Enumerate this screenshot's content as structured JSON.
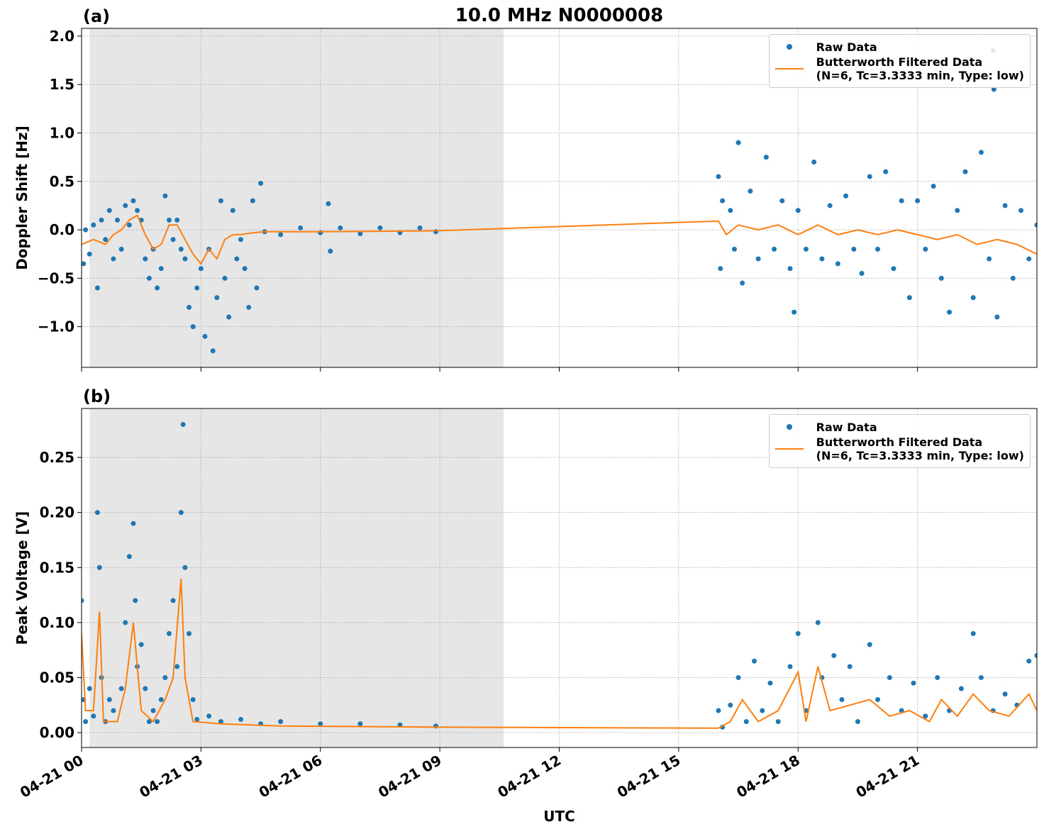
{
  "chart_data": [
    {
      "type": "scatter",
      "title": "10.0 MHz N0000008",
      "panel_label": "(a)",
      "y_label": "Doppler Shift [Hz]",
      "xlim": [
        0,
        24
      ],
      "xticks": [
        0,
        3,
        6,
        9,
        12,
        15,
        18,
        21
      ],
      "ylim": [
        -1.42,
        2.08
      ],
      "yticks": [
        {
          "value": -1.0,
          "label": "−1.0"
        },
        {
          "value": -0.5,
          "label": "−0.5"
        },
        {
          "value": 0.0,
          "label": "0.0"
        },
        {
          "value": 0.5,
          "label": "0.5"
        },
        {
          "value": 1.0,
          "label": "1.0"
        },
        {
          "value": 1.5,
          "label": "1.5"
        },
        {
          "value": 2.0,
          "label": "2.0"
        }
      ],
      "grid": true,
      "legend": "upper right",
      "shaded_x": [
        0.2,
        10.6
      ],
      "shade_color": "#e6e6e6",
      "series": [
        {
          "name": "Raw Data",
          "type": "scatter",
          "color": "#1f77b4",
          "x": [
            0.05,
            0.1,
            0.2,
            0.3,
            0.4,
            0.5,
            0.6,
            0.7,
            0.8,
            0.9,
            1.0,
            1.1,
            1.2,
            1.3,
            1.4,
            1.5,
            1.6,
            1.7,
            1.8,
            1.9,
            2.0,
            2.1,
            2.2,
            2.3,
            2.4,
            2.5,
            2.6,
            2.7,
            2.8,
            2.9,
            3.0,
            3.1,
            3.2,
            3.3,
            3.4,
            3.5,
            3.6,
            3.7,
            3.8,
            3.9,
            4.0,
            4.1,
            4.2,
            4.3,
            4.4,
            4.5,
            4.6,
            5.0,
            5.5,
            6.0,
            6.2,
            6.25,
            6.5,
            7.0,
            7.5,
            8.0,
            8.5,
            8.9,
            16.0,
            16.05,
            16.1,
            16.3,
            16.4,
            16.5,
            16.6,
            16.8,
            17.0,
            17.2,
            17.4,
            17.6,
            17.8,
            17.9,
            18.0,
            18.2,
            18.4,
            18.6,
            18.8,
            19.0,
            19.2,
            19.4,
            19.6,
            19.8,
            20.0,
            20.2,
            20.4,
            20.6,
            20.8,
            21.0,
            21.2,
            21.4,
            21.6,
            21.8,
            22.0,
            22.2,
            22.4,
            22.6,
            22.8,
            22.9,
            22.92,
            23.0,
            23.2,
            23.4,
            23.6,
            23.8,
            24.0
          ],
          "values": [
            -0.35,
            0.0,
            -0.25,
            0.05,
            -0.6,
            0.1,
            -0.1,
            0.2,
            -0.3,
            0.1,
            -0.2,
            0.25,
            0.05,
            0.3,
            0.2,
            0.1,
            -0.3,
            -0.5,
            -0.2,
            -0.6,
            -0.4,
            0.35,
            0.1,
            -0.1,
            0.1,
            -0.2,
            -0.3,
            -0.8,
            -1.0,
            -0.6,
            -0.4,
            -1.1,
            -0.2,
            -1.25,
            -0.7,
            0.3,
            -0.5,
            -0.9,
            0.2,
            -0.3,
            -0.1,
            -0.4,
            -0.8,
            0.3,
            -0.6,
            0.48,
            -0.02,
            -0.05,
            0.02,
            -0.03,
            0.27,
            -0.22,
            0.02,
            -0.04,
            0.02,
            -0.03,
            0.02,
            -0.02,
            0.55,
            -0.4,
            0.3,
            0.2,
            -0.2,
            0.9,
            -0.55,
            0.4,
            -0.3,
            0.75,
            -0.2,
            0.3,
            -0.4,
            -0.85,
            0.2,
            -0.2,
            0.7,
            -0.3,
            0.25,
            -0.35,
            0.35,
            -0.2,
            -0.45,
            0.55,
            -0.2,
            0.6,
            -0.4,
            0.3,
            -0.7,
            0.3,
            -0.2,
            0.45,
            -0.5,
            -0.85,
            0.2,
            0.6,
            -0.7,
            0.8,
            -0.3,
            1.85,
            1.45,
            -0.9,
            0.25,
            -0.5,
            0.2,
            -0.3,
            0.05
          ]
        },
        {
          "name": "Butterworth Filtered Data\n(N=6, Tc=3.3333 min, Type: low)",
          "type": "line",
          "color": "#ff7f0e",
          "x": [
            0,
            0.3,
            0.6,
            0.8,
            1.0,
            1.2,
            1.4,
            1.6,
            1.8,
            2.0,
            2.2,
            2.4,
            2.6,
            2.8,
            3.0,
            3.2,
            3.4,
            3.6,
            3.8,
            4.0,
            4.3,
            4.6,
            6,
            8.9,
            16.0,
            16.2,
            16.5,
            17,
            17.5,
            18,
            18.5,
            19,
            19.5,
            20,
            20.5,
            21,
            21.5,
            22,
            22.5,
            23,
            23.5,
            24
          ],
          "values": [
            -0.15,
            -0.1,
            -0.15,
            -0.05,
            0.0,
            0.1,
            0.15,
            -0.05,
            -0.2,
            -0.15,
            0.05,
            0.05,
            -0.1,
            -0.25,
            -0.35,
            -0.2,
            -0.3,
            -0.1,
            -0.05,
            -0.05,
            -0.03,
            -0.02,
            -0.02,
            -0.01,
            0.09,
            -0.05,
            0.05,
            0.0,
            0.05,
            -0.05,
            0.05,
            -0.05,
            0.0,
            -0.05,
            0.0,
            -0.05,
            -0.1,
            -0.05,
            -0.15,
            -0.1,
            -0.15,
            -0.25
          ]
        }
      ]
    },
    {
      "type": "scatter",
      "panel_label": "(b)",
      "y_label": "Peak Voltage [V]",
      "x_label": "UTC",
      "xlim": [
        0,
        24
      ],
      "xticks": [
        {
          "value": 0,
          "label": "04-21 00"
        },
        {
          "value": 3,
          "label": "04-21 03"
        },
        {
          "value": 6,
          "label": "04-21 06"
        },
        {
          "value": 9,
          "label": "04-21 09"
        },
        {
          "value": 12,
          "label": "04-21 12"
        },
        {
          "value": 15,
          "label": "04-21 15"
        },
        {
          "value": 18,
          "label": "04-21 18"
        },
        {
          "value": 21,
          "label": "04-21 21"
        }
      ],
      "ylim": [
        -0.0135,
        0.2945
      ],
      "yticks": [
        {
          "value": 0.0,
          "label": "0.00"
        },
        {
          "value": 0.05,
          "label": "0.05"
        },
        {
          "value": 0.1,
          "label": "0.10"
        },
        {
          "value": 0.15,
          "label": "0.15"
        },
        {
          "value": 0.2,
          "label": "0.20"
        },
        {
          "value": 0.25,
          "label": "0.25"
        }
      ],
      "grid": true,
      "legend": "upper right",
      "shaded_x": [
        0.2,
        10.6
      ],
      "shade_color": "#e6e6e6",
      "series": [
        {
          "name": "Raw Data",
          "type": "scatter",
          "color": "#1f77b4",
          "x": [
            0,
            0.05,
            0.1,
            0.2,
            0.3,
            0.4,
            0.45,
            0.5,
            0.6,
            0.7,
            0.8,
            1.0,
            1.1,
            1.2,
            1.3,
            1.35,
            1.4,
            1.5,
            1.6,
            1.7,
            1.8,
            1.9,
            2.0,
            2.1,
            2.2,
            2.3,
            2.4,
            2.5,
            2.55,
            2.6,
            2.7,
            2.8,
            2.9,
            3.2,
            3.5,
            4.0,
            4.5,
            5.0,
            6,
            7,
            8,
            8.9,
            16.0,
            16.1,
            16.3,
            16.5,
            16.7,
            16.9,
            17.1,
            17.3,
            17.5,
            17.8,
            18.0,
            18.2,
            18.5,
            18.6,
            18.9,
            19.1,
            19.3,
            19.5,
            19.8,
            20.0,
            20.3,
            20.6,
            20.9,
            21.2,
            21.5,
            21.8,
            22.1,
            22.4,
            22.6,
            22.9,
            23.2,
            23.5,
            23.8,
            24
          ],
          "values": [
            0.12,
            0.03,
            0.01,
            0.04,
            0.015,
            0.2,
            0.15,
            0.05,
            0.01,
            0.03,
            0.02,
            0.04,
            0.1,
            0.16,
            0.19,
            0.12,
            0.06,
            0.08,
            0.04,
            0.01,
            0.02,
            0.01,
            0.03,
            0.05,
            0.09,
            0.12,
            0.06,
            0.2,
            0.28,
            0.15,
            0.09,
            0.03,
            0.012,
            0.015,
            0.01,
            0.012,
            0.008,
            0.01,
            0.008,
            0.008,
            0.007,
            0.006,
            0.02,
            0.005,
            0.025,
            0.05,
            0.01,
            0.065,
            0.02,
            0.045,
            0.01,
            0.06,
            0.09,
            0.02,
            0.1,
            0.05,
            0.07,
            0.03,
            0.06,
            0.01,
            0.08,
            0.03,
            0.05,
            0.02,
            0.045,
            0.015,
            0.05,
            0.02,
            0.04,
            0.09,
            0.05,
            0.02,
            0.035,
            0.025,
            0.065,
            0.07
          ]
        },
        {
          "name": "Butterworth Filtered Data\n(N=6, Tc=3.3333 min, Type: low)",
          "type": "line",
          "color": "#ff7f0e",
          "x": [
            0,
            0.1,
            0.3,
            0.45,
            0.55,
            0.9,
            1.1,
            1.3,
            1.5,
            1.8,
            2.1,
            2.3,
            2.5,
            2.6,
            2.8,
            3.5,
            5,
            8.9,
            16.0,
            16.3,
            16.6,
            17,
            17.5,
            18,
            18.2,
            18.5,
            18.8,
            19.3,
            19.8,
            20.3,
            20.8,
            21.3,
            21.6,
            22,
            22.4,
            22.8,
            23.3,
            23.8,
            24
          ],
          "values": [
            0.09,
            0.02,
            0.02,
            0.11,
            0.01,
            0.01,
            0.04,
            0.1,
            0.02,
            0.01,
            0.03,
            0.05,
            0.14,
            0.05,
            0.01,
            0.008,
            0.006,
            0.005,
            0.004,
            0.01,
            0.03,
            0.01,
            0.02,
            0.055,
            0.01,
            0.06,
            0.02,
            0.025,
            0.03,
            0.015,
            0.02,
            0.01,
            0.03,
            0.015,
            0.035,
            0.02,
            0.015,
            0.035,
            0.02
          ]
        }
      ]
    }
  ]
}
